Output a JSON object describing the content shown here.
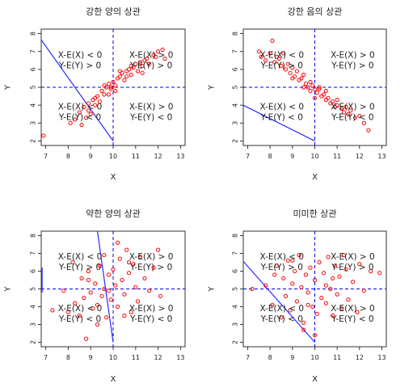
{
  "chart_data": [
    {
      "type": "scatter",
      "title": "강한 양의 상관",
      "xlabel": "X",
      "ylabel": "Y",
      "xlim": [
        6.8,
        13.2
      ],
      "ylim": [
        1.75,
        8.25
      ],
      "xticks": [
        7,
        8,
        9,
        10,
        11,
        12,
        13
      ],
      "yticks": [
        2,
        3,
        4,
        5,
        6,
        7,
        8
      ],
      "mean_x": 10,
      "mean_y": 5,
      "quadrant_labels": {
        "top_left": [
          "X-E(X) < 0",
          "Y-E(Y) > 0"
        ],
        "top_right": [
          "X-E(X) > 0",
          "Y-E(Y) > 0"
        ],
        "bottom_left": [
          "X-E(X) < 0",
          "Y-E(Y) < 0"
        ],
        "bottom_right": [
          "X-E(X) > 0",
          "Y-E(Y) < 0"
        ]
      },
      "line_points": [
        [
          6.8,
          7.65
        ],
        [
          10.0,
          2.0
        ]
      ],
      "series": [
        {
          "color": "#ff0000",
          "points": [
            [
              6.9,
              2.3
            ],
            [
              8.1,
              3.0
            ],
            [
              8.3,
              3.2
            ],
            [
              8.5,
              3.6
            ],
            [
              8.6,
              2.9
            ],
            [
              8.7,
              3.9
            ],
            [
              8.8,
              3.3
            ],
            [
              8.9,
              4.1
            ],
            [
              9.0,
              3.5
            ],
            [
              9.1,
              4.3
            ],
            [
              9.2,
              4.0
            ],
            [
              9.3,
              4.5
            ],
            [
              9.4,
              4.2
            ],
            [
              9.5,
              4.8
            ],
            [
              9.6,
              4.6
            ],
            [
              9.7,
              5.0
            ],
            [
              9.8,
              5.2
            ],
            [
              9.9,
              4.9
            ],
            [
              10.0,
              5.3
            ],
            [
              10.1,
              5.1
            ],
            [
              10.2,
              5.5
            ],
            [
              10.3,
              5.6
            ],
            [
              10.4,
              5.8
            ],
            [
              10.5,
              5.4
            ],
            [
              10.6,
              5.9
            ],
            [
              10.7,
              6.0
            ],
            [
              10.8,
              5.7
            ],
            [
              10.9,
              6.1
            ],
            [
              11.0,
              6.3
            ],
            [
              11.1,
              5.9
            ],
            [
              11.2,
              6.4
            ],
            [
              11.3,
              6.2
            ],
            [
              11.4,
              6.5
            ],
            [
              11.5,
              6.6
            ],
            [
              11.6,
              6.3
            ],
            [
              11.8,
              6.8
            ],
            [
              11.9,
              6.7
            ],
            [
              12.0,
              7.0
            ],
            [
              12.2,
              7.1
            ],
            [
              12.3,
              6.6
            ],
            [
              9.9,
              5.0
            ],
            [
              10.1,
              4.8
            ],
            [
              9.6,
              5.1
            ],
            [
              10.3,
              5.9
            ],
            [
              10.6,
              5.6
            ],
            [
              9.2,
              4.4
            ],
            [
              8.9,
              3.7
            ],
            [
              10.8,
              6.2
            ],
            [
              11.3,
              5.8
            ],
            [
              9.8,
              4.6
            ]
          ]
        }
      ]
    },
    {
      "type": "scatter",
      "title": "강한 음의 상관",
      "xlabel": "X",
      "ylabel": "Y",
      "xlim": [
        6.8,
        13.2
      ],
      "ylim": [
        1.75,
        8.25
      ],
      "xticks": [
        7,
        8,
        9,
        10,
        11,
        12,
        13
      ],
      "yticks": [
        2,
        3,
        4,
        5,
        6,
        7,
        8
      ],
      "mean_x": 10,
      "mean_y": 5,
      "quadrant_labels": {
        "top_left": [
          "X-E(X) < 0",
          "Y-E(Y) > 0"
        ],
        "top_right": [
          "X-E(X) > 0",
          "Y-E(Y) > 0"
        ],
        "bottom_left": [
          "X-E(X) < 0",
          "Y-E(Y) < 0"
        ],
        "bottom_right": [
          "X-E(X) > 0",
          "Y-E(Y) < 0"
        ]
      },
      "line_points": [
        [
          6.8,
          4.0
        ],
        [
          10.0,
          2.0
        ]
      ],
      "series": [
        {
          "color": "#ff0000",
          "points": [
            [
              7.5,
              7.0
            ],
            [
              7.6,
              6.7
            ],
            [
              7.8,
              6.5
            ],
            [
              8.0,
              6.9
            ],
            [
              8.1,
              7.6
            ],
            [
              8.2,
              6.4
            ],
            [
              8.4,
              6.6
            ],
            [
              8.5,
              6.2
            ],
            [
              8.6,
              6.9
            ],
            [
              8.7,
              6.0
            ],
            [
              8.8,
              6.3
            ],
            [
              8.9,
              5.8
            ],
            [
              9.0,
              6.1
            ],
            [
              9.1,
              5.6
            ],
            [
              9.2,
              5.9
            ],
            [
              9.3,
              5.4
            ],
            [
              9.4,
              5.5
            ],
            [
              9.5,
              5.7
            ],
            [
              9.6,
              5.2
            ],
            [
              9.7,
              5.0
            ],
            [
              9.8,
              4.8
            ],
            [
              9.9,
              5.1
            ],
            [
              10.0,
              4.9
            ],
            [
              10.1,
              4.7
            ],
            [
              10.2,
              5.0
            ],
            [
              10.3,
              4.5
            ],
            [
              10.4,
              4.6
            ],
            [
              10.5,
              4.3
            ],
            [
              10.6,
              4.4
            ],
            [
              10.7,
              4.1
            ],
            [
              10.8,
              4.2
            ],
            [
              10.9,
              3.9
            ],
            [
              11.0,
              4.0
            ],
            [
              11.2,
              3.8
            ],
            [
              11.3,
              3.6
            ],
            [
              11.5,
              3.5
            ],
            [
              11.6,
              3.7
            ],
            [
              11.8,
              3.3
            ],
            [
              12.0,
              3.4
            ],
            [
              12.2,
              3.0
            ],
            [
              12.4,
              2.6
            ],
            [
              9.0,
              5.5
            ],
            [
              9.5,
              5.0
            ],
            [
              10.0,
              4.4
            ],
            [
              10.5,
              4.8
            ],
            [
              11.0,
              4.3
            ],
            [
              8.3,
              6.7
            ],
            [
              10.2,
              4.9
            ],
            [
              9.8,
              5.3
            ],
            [
              11.4,
              3.9
            ]
          ]
        }
      ]
    },
    {
      "type": "scatter",
      "title": "약한 양의 상관",
      "xlabel": "X",
      "ylabel": "Y",
      "xlim": [
        6.8,
        13.2
      ],
      "ylim": [
        1.75,
        8.25
      ],
      "xticks": [
        7,
        8,
        9,
        10,
        11,
        12,
        13
      ],
      "yticks": [
        2,
        3,
        4,
        5,
        6,
        7,
        8
      ],
      "mean_x": 10,
      "mean_y": 5,
      "quadrant_labels": {
        "top_left": [
          "X-E(X) < 0",
          "Y-E(Y) > 0"
        ],
        "top_right": [
          "X-E(X) > 0",
          "Y-E(Y) > 0"
        ],
        "bottom_left": [
          "X-E(X) < 0",
          "Y-E(Y) < 0"
        ],
        "bottom_right": [
          "X-E(X) > 0",
          "Y-E(Y) < 0"
        ]
      },
      "line_points": [
        [
          9.3,
          8.25
        ],
        [
          10.0,
          2.0
        ]
      ],
      "extra_segment": [
        [
          6.8,
          6.2
        ],
        [
          6.8,
          4.8
        ]
      ],
      "series": [
        {
          "color": "#ff0000",
          "points": [
            [
              7.3,
              3.8
            ],
            [
              7.8,
              4.9
            ],
            [
              8.0,
              3.7
            ],
            [
              8.2,
              6.5
            ],
            [
              8.3,
              4.2
            ],
            [
              8.5,
              3.5
            ],
            [
              8.6,
              5.6
            ],
            [
              8.7,
              4.5
            ],
            [
              8.8,
              2.2
            ],
            [
              8.9,
              6.0
            ],
            [
              9.0,
              4.8
            ],
            [
              9.1,
              3.9
            ],
            [
              9.2,
              5.3
            ],
            [
              9.3,
              4.1
            ],
            [
              9.4,
              6.3
            ],
            [
              9.5,
              4.6
            ],
            [
              9.6,
              5.0
            ],
            [
              9.7,
              3.4
            ],
            [
              9.8,
              5.8
            ],
            [
              9.9,
              4.4
            ],
            [
              10.0,
              6.1
            ],
            [
              10.1,
              5.2
            ],
            [
              10.2,
              4.0
            ],
            [
              10.3,
              6.7
            ],
            [
              10.4,
              5.5
            ],
            [
              10.5,
              4.7
            ],
            [
              10.6,
              7.2
            ],
            [
              10.7,
              5.9
            ],
            [
              10.8,
              3.7
            ],
            [
              10.9,
              6.4
            ],
            [
              11.0,
              5.1
            ],
            [
              11.1,
              4.3
            ],
            [
              11.2,
              6.8
            ],
            [
              11.4,
              5.6
            ],
            [
              11.6,
              4.9
            ],
            [
              11.8,
              6.2
            ],
            [
              12.0,
              7.2
            ],
            [
              12.1,
              4.6
            ],
            [
              10.2,
              7.6
            ],
            [
              9.6,
              6.9
            ],
            [
              9.3,
              3.0
            ],
            [
              10.5,
              3.5
            ],
            [
              8.9,
              5.5
            ],
            [
              9.8,
              4.9
            ],
            [
              10.7,
              6.5
            ]
          ]
        }
      ]
    },
    {
      "type": "scatter",
      "title": "미미한 상관",
      "xlabel": "X",
      "ylabel": "Y",
      "xlim": [
        6.8,
        13.2
      ],
      "ylim": [
        1.75,
        8.25
      ],
      "xticks": [
        7,
        8,
        9,
        10,
        11,
        12,
        13
      ],
      "yticks": [
        2,
        3,
        4,
        5,
        6,
        7,
        8
      ],
      "mean_x": 10,
      "mean_y": 5,
      "quadrant_labels": {
        "top_left": [
          "X-E(X) < 0",
          "Y-E(Y) > 0"
        ],
        "top_right": [
          "X-E(X) > 0",
          "Y-E(Y) > 0"
        ],
        "bottom_left": [
          "X-E(X) < 0",
          "Y-E(Y) < 0"
        ],
        "bottom_right": [
          "X-E(X) > 0",
          "Y-E(Y) < 0"
        ]
      },
      "line_points": [
        [
          6.8,
          6.55
        ],
        [
          10.0,
          2.0
        ]
      ],
      "series": [
        {
          "color": "#ff0000",
          "points": [
            [
              7.2,
              5.0
            ],
            [
              7.8,
              5.2
            ],
            [
              8.1,
              4.1
            ],
            [
              8.3,
              6.3
            ],
            [
              8.5,
              3.4
            ],
            [
              8.6,
              5.6
            ],
            [
              8.7,
              4.6
            ],
            [
              8.8,
              6.6
            ],
            [
              8.9,
              3.8
            ],
            [
              9.0,
              5.3
            ],
            [
              9.1,
              6.0
            ],
            [
              9.2,
              4.3
            ],
            [
              9.3,
              6.9
            ],
            [
              9.4,
              5.1
            ],
            [
              9.5,
              3.1
            ],
            [
              9.6,
              5.8
            ],
            [
              9.7,
              4.8
            ],
            [
              9.8,
              6.2
            ],
            [
              9.9,
              4.0
            ],
            [
              10.0,
              5.5
            ],
            [
              10.1,
              3.6
            ],
            [
              10.2,
              6.5
            ],
            [
              10.3,
              4.5
            ],
            [
              10.4,
              5.9
            ],
            [
              10.5,
              4.2
            ],
            [
              10.6,
              6.8
            ],
            [
              10.7,
              5.0
            ],
            [
              10.8,
              3.5
            ],
            [
              10.9,
              6.3
            ],
            [
              11.0,
              4.7
            ],
            [
              11.1,
              5.7
            ],
            [
              11.2,
              3.9
            ],
            [
              11.4,
              6.1
            ],
            [
              11.5,
              4.4
            ],
            [
              11.7,
              5.4
            ],
            [
              11.9,
              3.7
            ],
            [
              12.0,
              6.4
            ],
            [
              12.2,
              4.9
            ],
            [
              12.5,
              6.0
            ],
            [
              12.9,
              5.9
            ],
            [
              9.5,
              2.7
            ],
            [
              10.0,
              2.4
            ],
            [
              9.0,
              6.6
            ],
            [
              10.5,
              5.2
            ],
            [
              8.2,
              5.8
            ],
            [
              11.3,
              6.9
            ],
            [
              9.7,
              4.1
            ],
            [
              10.8,
              5.6
            ]
          ]
        }
      ]
    }
  ]
}
